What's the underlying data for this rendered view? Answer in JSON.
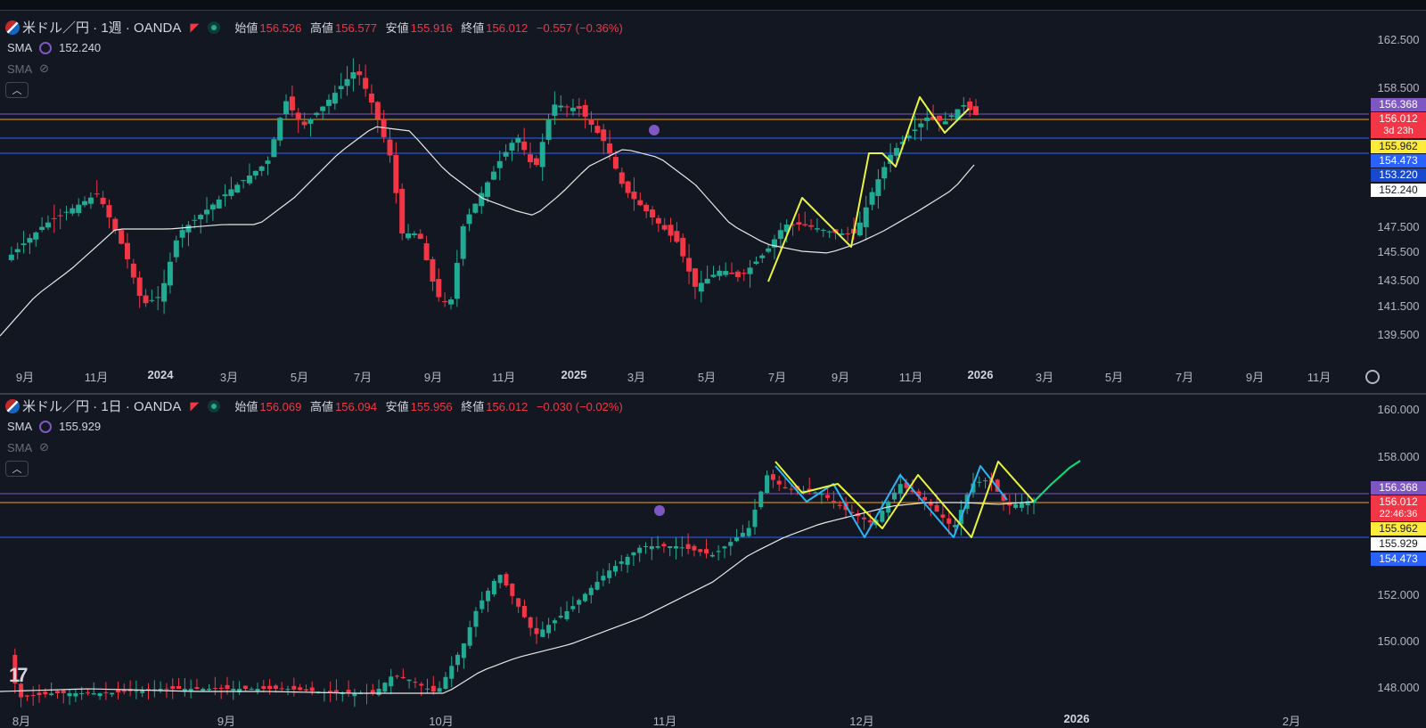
{
  "weekly": {
    "symbol": "米ドル／円 · 1週 · OANDA",
    "ohlc": [
      {
        "label": "始値",
        "value": "156.526"
      },
      {
        "label": "高値",
        "value": "156.577"
      },
      {
        "label": "安値",
        "value": "155.916"
      },
      {
        "label": "終値",
        "value": "156.012"
      }
    ],
    "change": "−0.557 (−0.36%)",
    "sma1_label": "SMA",
    "sma1_value": "152.240",
    "sma2_label": "SMA",
    "price_ticks": [
      "162.500",
      "158.500",
      "147.500",
      "145.500",
      "143.500",
      "141.500",
      "139.500"
    ],
    "time_ticks": [
      "9月",
      "11月",
      "2024",
      "3月",
      "5月",
      "7月",
      "9月",
      "11月",
      "2025",
      "3月",
      "5月",
      "7月",
      "9月",
      "11月",
      "2026",
      "3月",
      "5月",
      "7月",
      "9月",
      "11月"
    ],
    "badges": {
      "resistance": "156.368",
      "last": "156.012",
      "countdown": "3d 23h",
      "yellow": "155.962",
      "blue1": "154.473",
      "blue2": "153.220",
      "sma": "152.240"
    }
  },
  "daily": {
    "symbol": "米ドル／円 · 1日 · OANDA",
    "ohlc": [
      {
        "label": "始値",
        "value": "156.069"
      },
      {
        "label": "高値",
        "value": "156.094"
      },
      {
        "label": "安値",
        "value": "155.956"
      },
      {
        "label": "終値",
        "value": "156.012"
      }
    ],
    "change": "−0.030 (−0.02%)",
    "sma1_label": "SMA",
    "sma1_value": "155.929",
    "sma2_label": "SMA",
    "price_ticks": [
      "160.000",
      "158.000",
      "152.000",
      "150.000",
      "148.000"
    ],
    "time_ticks": [
      "8月",
      "9月",
      "10月",
      "11月",
      "12月",
      "2026",
      "2月"
    ],
    "badges": {
      "resistance": "156.368",
      "last": "156.012",
      "countdown": "22:46:36",
      "yellow": "155.962",
      "sma": "155.929",
      "blue1": "154.473"
    }
  },
  "colors": {
    "up": "#22ab94",
    "down": "#f23645",
    "background": "#131722",
    "sma": "#e8e8e8",
    "resistance": "#7e57c2",
    "support": "#2962ff",
    "last_price": "#f7a600",
    "drawing_yellow": "#e8f53b",
    "drawing_cyan": "#29b6f6",
    "drawing_green": "#00e676"
  },
  "icons": {
    "collapse": "chevron-up-icon",
    "settings": "gear-icon",
    "visibility": "eye-off-icon",
    "logo": "tradingview-logo"
  }
}
